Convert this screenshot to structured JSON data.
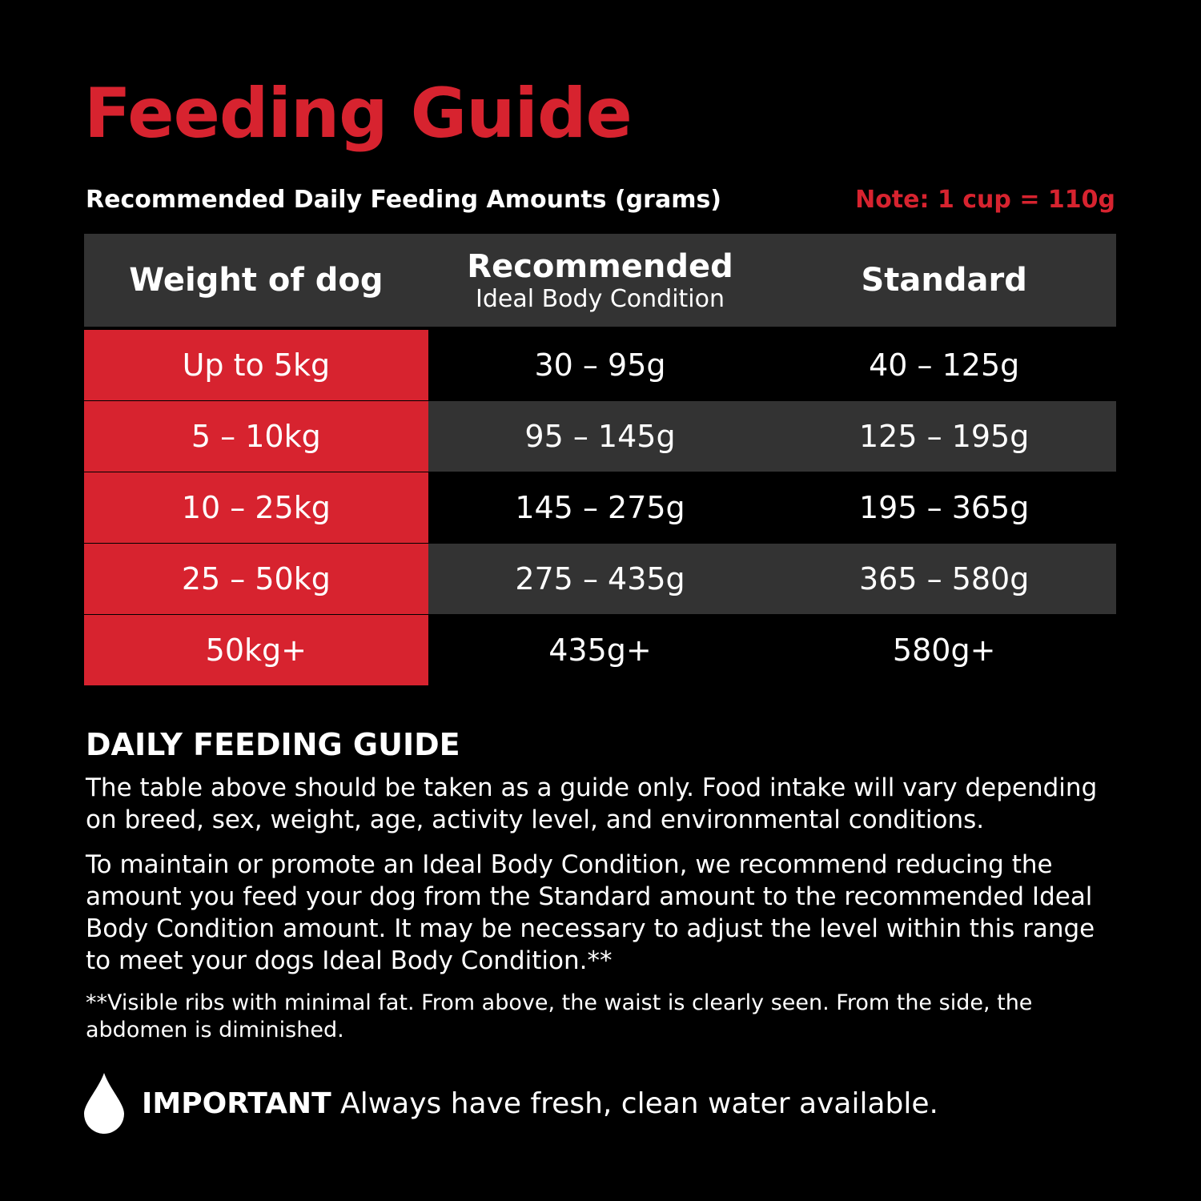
{
  "header": {
    "title": "Feeding Guide",
    "subtitle": "Recommended Daily Feeding Amounts (grams)",
    "note": "Note: 1 cup = 110g"
  },
  "table": {
    "columns": [
      {
        "title": "Weight of dog"
      },
      {
        "title": "Recommended",
        "subtitle": "Ideal Body Condition"
      },
      {
        "title": "Standard"
      }
    ],
    "rows": [
      [
        "Up to 5kg",
        "30 – 95g",
        "40 – 125g"
      ],
      [
        "5 – 10kg",
        "95 – 145g",
        "125 – 195g"
      ],
      [
        "10 – 25kg",
        "145 – 275g",
        "195 – 365g"
      ],
      [
        "25 – 50kg",
        "275 – 435g",
        "365 – 580g"
      ],
      [
        "50kg+",
        "435g+",
        "580g+"
      ]
    ]
  },
  "guide": {
    "heading": "DAILY FEEDING GUIDE",
    "paragraphs": [
      "The table above should be taken as a guide only. Food intake will vary depending on breed, sex, weight, age, activity level, and environmental conditions.",
      "To maintain or promote an Ideal Body Condition, we recommend reducing the amount you feed your dog from the Standard amount to the recommended Ideal Body Condition amount. It may be necessary to adjust the level within this range to meet your dogs Ideal Body Condition.**"
    ],
    "footnote": "**Visible ribs with minimal fat. From above, the waist is clearly seen. From the side, the abdomen is diminished."
  },
  "important": {
    "label": "IMPORTANT",
    "text": "Always have fresh, clean water available."
  }
}
